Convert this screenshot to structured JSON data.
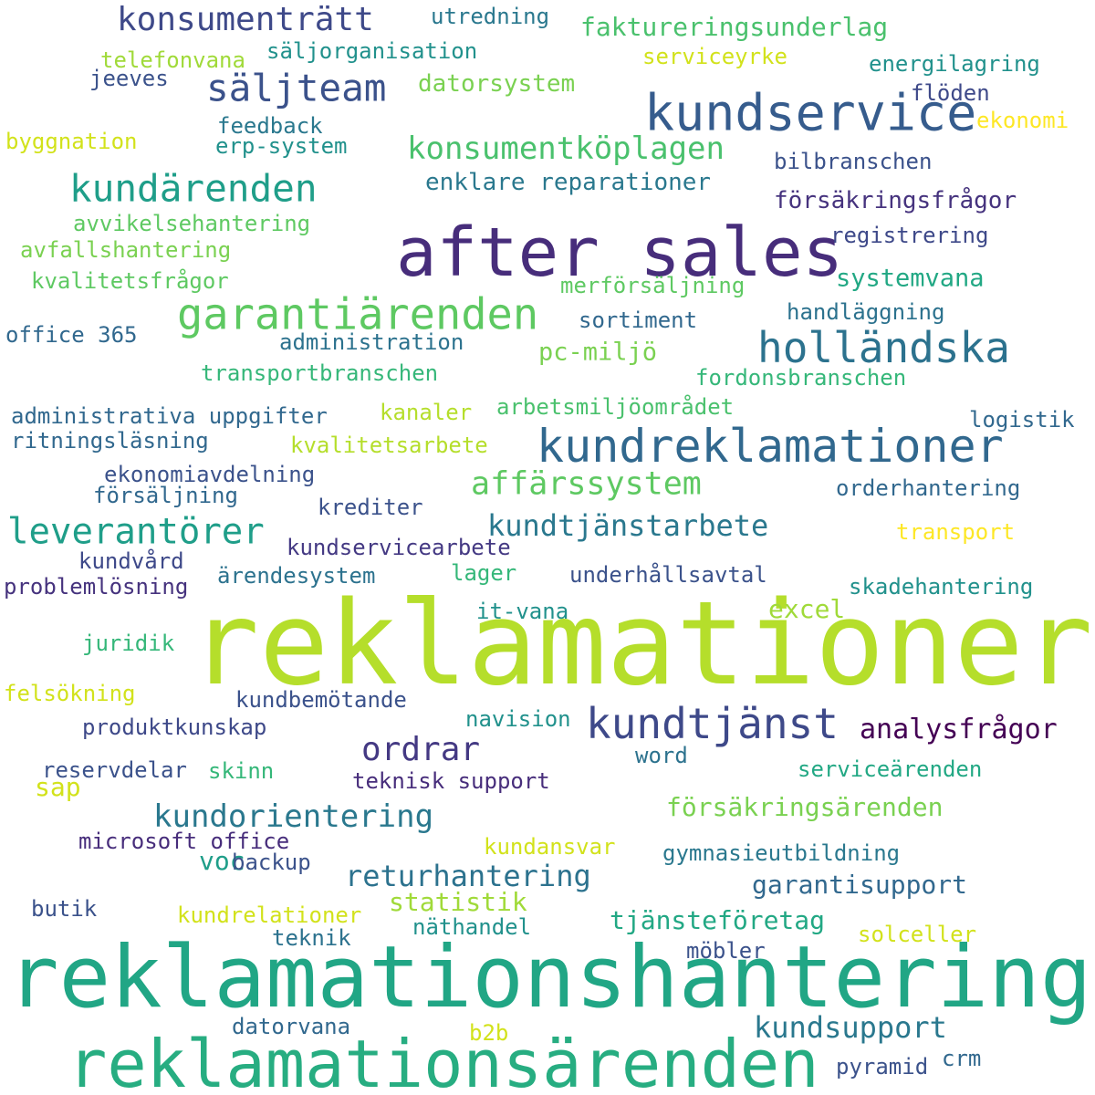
{
  "words": [
    {
      "text": "reklamationer",
      "color": "#b5de2b"
    },
    {
      "text": "reklamationshantering",
      "color": "#21a685"
    },
    {
      "text": "reklamationsärenden",
      "color": "#27ad81"
    },
    {
      "text": "after sales",
      "color": "#472d7b"
    },
    {
      "text": "kundservice",
      "color": "#365c8d"
    },
    {
      "text": "kundreklamationer",
      "color": "#31688e"
    },
    {
      "text": "kundtjänst",
      "color": "#3e4989"
    },
    {
      "text": "garantiärenden",
      "color": "#5ec962"
    },
    {
      "text": "holländska",
      "color": "#2c728e"
    },
    {
      "text": "säljteam",
      "color": "#3b528b"
    },
    {
      "text": "kundärenden",
      "color": "#1f9e89"
    },
    {
      "text": "konsumenträtt",
      "color": "#3e4989"
    },
    {
      "text": "konsumentköplagen",
      "color": "#4ac16d"
    },
    {
      "text": "leverantörer",
      "color": "#1f9e89"
    },
    {
      "text": "affärssystem",
      "color": "#5ec962"
    },
    {
      "text": "kundtjänstarbete",
      "color": "#2a788e"
    },
    {
      "text": "kundorientering",
      "color": "#2a788e"
    },
    {
      "text": "ordrar",
      "color": "#443983"
    },
    {
      "text": "analysfrågor",
      "color": "#440154"
    },
    {
      "text": "returhantering",
      "color": "#2c728e"
    },
    {
      "text": "kundsupport",
      "color": "#2a788e"
    },
    {
      "text": "garantisupport",
      "color": "#31688e"
    },
    {
      "text": "försäkringsärenden",
      "color": "#7ad151"
    },
    {
      "text": "faktureringsunderlag",
      "color": "#4ac16d"
    },
    {
      "text": "enklare reparationer",
      "color": "#2a788e"
    },
    {
      "text": "systemvana",
      "color": "#22a884"
    },
    {
      "text": "pc-miljö",
      "color": "#7ad151"
    },
    {
      "text": "statistik",
      "color": "#a0da39"
    },
    {
      "text": "sap",
      "color": "#d2e21b"
    },
    {
      "text": "voc",
      "color": "#1f9e89"
    },
    {
      "text": "excel",
      "color": "#a0da39"
    },
    {
      "text": "tjänsteföretag",
      "color": "#22a884"
    },
    {
      "text": "utredning",
      "color": "#2a788e"
    },
    {
      "text": "säljorganisation",
      "color": "#21918c"
    },
    {
      "text": "serviceyrke",
      "color": "#d2e21b"
    },
    {
      "text": "energilagring",
      "color": "#21918c"
    },
    {
      "text": "telefonvana",
      "color": "#a0da39"
    },
    {
      "text": "jeeves",
      "color": "#3b528b"
    },
    {
      "text": "datorsystem",
      "color": "#7ad151"
    },
    {
      "text": "flöden",
      "color": "#3e4989"
    },
    {
      "text": "feedback",
      "color": "#2a788e"
    },
    {
      "text": "ekonomi",
      "color": "#fde725"
    },
    {
      "text": "byggnation",
      "color": "#d2e21b"
    },
    {
      "text": "erp-system",
      "color": "#21918c"
    },
    {
      "text": "bilbranschen",
      "color": "#3b528b"
    },
    {
      "text": "försäkringsfrågor",
      "color": "#46337e"
    },
    {
      "text": "avvikelsehantering",
      "color": "#5ec962"
    },
    {
      "text": "registrering",
      "color": "#3e4989"
    },
    {
      "text": "avfallshantering",
      "color": "#7ad151"
    },
    {
      "text": "kvalitetsfrågor",
      "color": "#5ec962"
    },
    {
      "text": "merförsäljning",
      "color": "#5ec962"
    },
    {
      "text": "handläggning",
      "color": "#2c728e"
    },
    {
      "text": "sortiment",
      "color": "#31688e"
    },
    {
      "text": "office 365",
      "color": "#31688e"
    },
    {
      "text": "administration",
      "color": "#2c728e"
    },
    {
      "text": "transportbranschen",
      "color": "#35b779"
    },
    {
      "text": "fordonsbranschen",
      "color": "#35b779"
    },
    {
      "text": "administrativa uppgifter",
      "color": "#31688e"
    },
    {
      "text": "kanaler",
      "color": "#b5de2b"
    },
    {
      "text": "arbetsmiljöområdet",
      "color": "#4ac16d"
    },
    {
      "text": "logistik",
      "color": "#31688e"
    },
    {
      "text": "ritningsläsning",
      "color": "#31688e"
    },
    {
      "text": "kvalitetsarbete",
      "color": "#b5de2b"
    },
    {
      "text": "ekonomiavdelning",
      "color": "#3b528b"
    },
    {
      "text": "försäljning",
      "color": "#31688e"
    },
    {
      "text": "krediter",
      "color": "#3b528b"
    },
    {
      "text": "orderhantering",
      "color": "#31688e"
    },
    {
      "text": "transport",
      "color": "#fde725"
    },
    {
      "text": "kundservicearbete",
      "color": "#443983"
    },
    {
      "text": "kundvård",
      "color": "#3e4989"
    },
    {
      "text": "ärendesystem",
      "color": "#2c728e"
    },
    {
      "text": "lager",
      "color": "#35b779"
    },
    {
      "text": "underhållsavtal",
      "color": "#3b528b"
    },
    {
      "text": "problemlösning",
      "color": "#46337e"
    },
    {
      "text": "skadehantering",
      "color": "#21918c"
    },
    {
      "text": "it-vana",
      "color": "#21918c"
    },
    {
      "text": "juridik",
      "color": "#35b779"
    },
    {
      "text": "felsökning",
      "color": "#d2e21b"
    },
    {
      "text": "kundbemötande",
      "color": "#3b528b"
    },
    {
      "text": "produktkunskap",
      "color": "#3e4989"
    },
    {
      "text": "navision",
      "color": "#21918c"
    },
    {
      "text": "word",
      "color": "#2c728e"
    },
    {
      "text": "reservdelar",
      "color": "#3b528b"
    },
    {
      "text": "skinn",
      "color": "#35b779"
    },
    {
      "text": "teknisk support",
      "color": "#472d7b"
    },
    {
      "text": "serviceärenden",
      "color": "#22a884"
    },
    {
      "text": "microsoft office",
      "color": "#472d7b"
    },
    {
      "text": "kundansvar",
      "color": "#d2e21b"
    },
    {
      "text": "gymnasieutbildning",
      "color": "#2a788e"
    },
    {
      "text": "backup",
      "color": "#3b528b"
    },
    {
      "text": "butik",
      "color": "#3b528b"
    },
    {
      "text": "kundrelationer",
      "color": "#d2e21b"
    },
    {
      "text": "näthandel",
      "color": "#21918c"
    },
    {
      "text": "solceller",
      "color": "#d2e21b"
    },
    {
      "text": "teknik",
      "color": "#2c728e"
    },
    {
      "text": "möbler",
      "color": "#3b528b"
    },
    {
      "text": "datorvana",
      "color": "#31688e"
    },
    {
      "text": "b2b",
      "color": "#d2e21b"
    },
    {
      "text": "pyramid",
      "color": "#3b528b"
    },
    {
      "text": "crm",
      "color": "#31688e"
    }
  ]
}
